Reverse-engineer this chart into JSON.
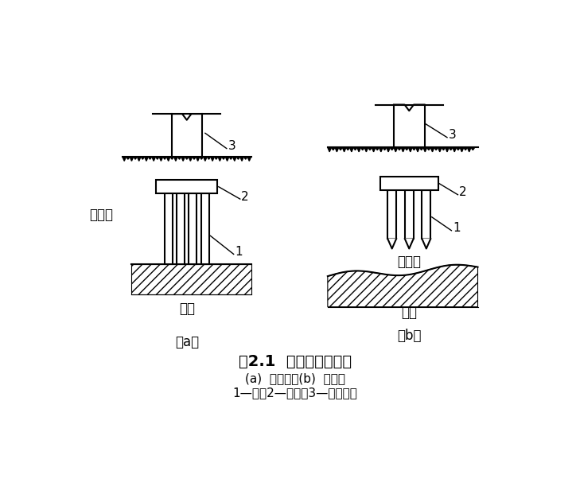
{
  "title": "图2.1  端承桩与摩擦桩",
  "subtitle1": "(a)  端承桩；(b)  摩擦桩",
  "subtitle2": "1—桩；2—承台；3—上部结构",
  "label_a": "（a）",
  "label_b": "（b）",
  "text_soft_a": "软土层",
  "text_hard_a": "硬层",
  "text_soft_b": "软土层",
  "text_hard_b": "硬层",
  "bg_color": "#ffffff",
  "line_color": "#000000"
}
